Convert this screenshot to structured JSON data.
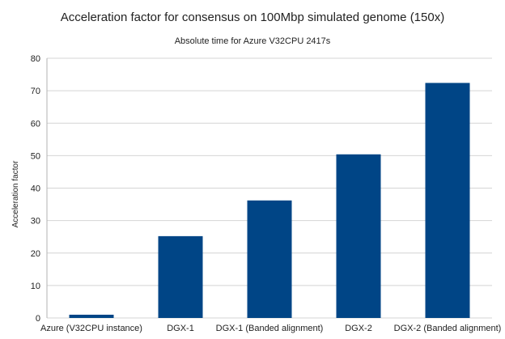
{
  "chart_data": {
    "type": "bar",
    "title": "Acceleration factor for consensus on 100Mbp simulated genome (150x)",
    "subtitle": "Absolute time for Azure V32CPU 2417s",
    "xlabel": "",
    "ylabel": "Acceleration factor",
    "ylim": [
      0,
      80
    ],
    "yticks": [
      0,
      10,
      20,
      30,
      40,
      50,
      60,
      70,
      80
    ],
    "grid": true,
    "legend": "none",
    "categories": [
      "Azure (V32CPU instance)",
      "DGX-1",
      "DGX-1 (Banded alignment)",
      "DGX-2",
      "DGX-2 (Banded alignment)"
    ],
    "values": [
      1,
      25.2,
      36.2,
      50.4,
      72.4
    ],
    "bar_color": "#004586"
  }
}
